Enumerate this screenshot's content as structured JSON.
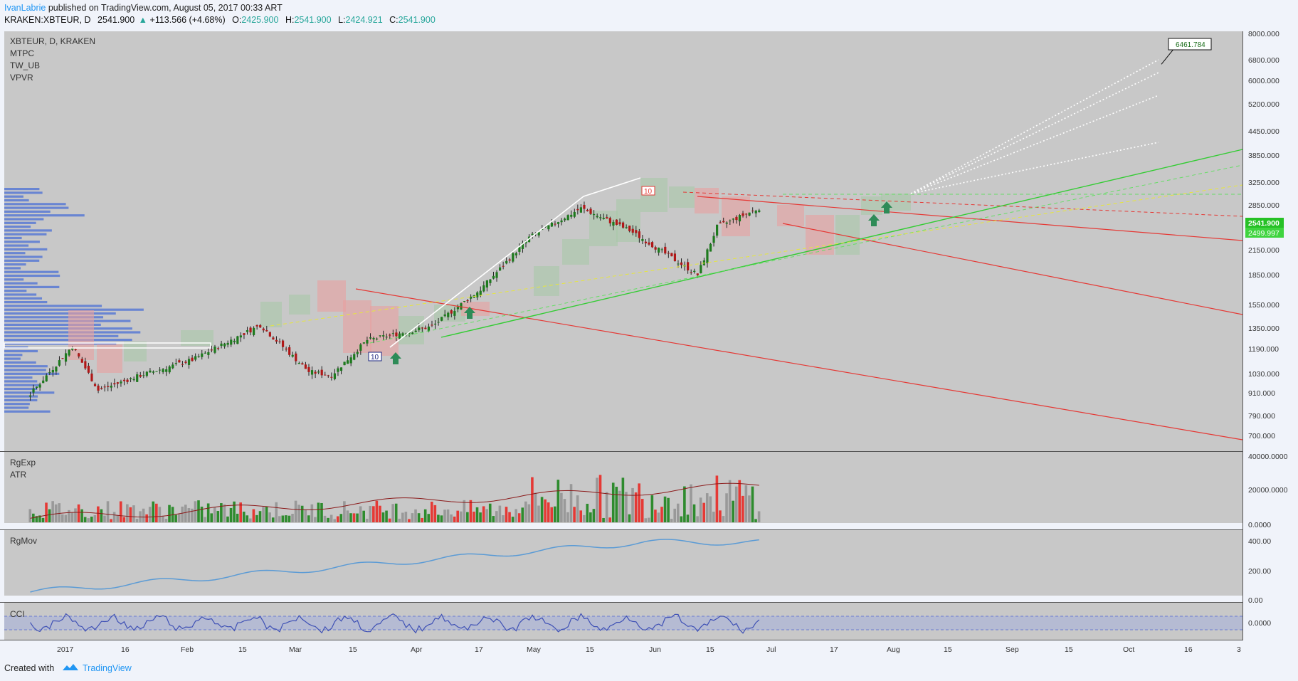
{
  "header": {
    "author": "IvanLabrie",
    "published_text": "published on TradingView.com, August 05, 2017 00:33 ART",
    "symbol_line": "KRAKEN:XBTEUR, D",
    "last": "2541.900",
    "change_arrow": "▲",
    "change": "+113.566 (+4.68%)",
    "open_label": "O:",
    "open": "2425.900",
    "high_label": "H:",
    "high": "2541.900",
    "low_label": "L:",
    "low": "2424.921",
    "close_label": "C:",
    "close": "2541.900"
  },
  "main_pane": {
    "legend": [
      "XBTEUR, D, KRAKEN",
      "MTPC",
      "TW_UB",
      "VPVR"
    ],
    "price_axis": [
      "8000.000",
      "6800.000",
      "6000.000",
      "5200.000",
      "4450.000",
      "3850.000",
      "3250.000",
      "2850.000",
      "2150.000",
      "1850.000",
      "1550.000",
      "1350.000",
      "1190.000",
      "1030.000",
      "910.000",
      "790.000",
      "700.000"
    ],
    "price_tag": "2541.900",
    "price_tag2": "2499.997",
    "target_label": "6461.784",
    "marker_labels": [
      "10",
      "10"
    ]
  },
  "pane2": {
    "legend": [
      "RgExp",
      "ATR"
    ],
    "axis": [
      "40000.0000",
      "20000.0000",
      "0.0000"
    ]
  },
  "pane3": {
    "legend": [
      "RgMov"
    ],
    "axis": [
      "400.00",
      "200.00",
      "0.00"
    ]
  },
  "pane4": {
    "legend": [
      "CCI"
    ],
    "axis": [
      "0.0000"
    ]
  },
  "time_axis": [
    "2017",
    "16",
    "Feb",
    "15",
    "Mar",
    "15",
    "Apr",
    "17",
    "May",
    "15",
    "Jun",
    "15",
    "Jul",
    "17",
    "Aug",
    "15",
    "Sep",
    "15",
    "Oct",
    "16",
    "3"
  ],
  "footer": {
    "created_with": "Created with",
    "brand": "TradingView"
  },
  "colors": {
    "up": "#26a69a",
    "bar_up": "#2e8b2e",
    "bar_down": "#e53935",
    "bar_neutral": "#999999",
    "background": "#c8c8c8",
    "line_blue": "#5b9bd5",
    "vpvr": "#4a6fd6"
  },
  "chart_data": {
    "type": "candlestick",
    "symbol": "KRAKEN:XBTEUR",
    "interval": "D",
    "ylim": [
      650,
      8500
    ],
    "y_scale": "log",
    "approx_close_path": [
      {
        "date": "2016-12-22",
        "close": 760
      },
      {
        "date": "2017-01-04",
        "close": 1040
      },
      {
        "date": "2017-01-12",
        "close": 780
      },
      {
        "date": "2017-01-25",
        "close": 860
      },
      {
        "date": "2017-02-10",
        "close": 950
      },
      {
        "date": "2017-03-03",
        "close": 1190
      },
      {
        "date": "2017-03-18",
        "close": 880
      },
      {
        "date": "2017-03-25",
        "close": 860
      },
      {
        "date": "2017-04-05",
        "close": 1080
      },
      {
        "date": "2017-04-25",
        "close": 1180
      },
      {
        "date": "2017-05-10",
        "close": 1500
      },
      {
        "date": "2017-05-25",
        "close": 2100
      },
      {
        "date": "2017-06-10",
        "close": 2540
      },
      {
        "date": "2017-06-25",
        "close": 2200
      },
      {
        "date": "2017-07-16",
        "close": 1650
      },
      {
        "date": "2017-07-22",
        "close": 2250
      },
      {
        "date": "2017-08-04",
        "close": 2541.9
      }
    ],
    "target": {
      "value": 6461.784
    }
  }
}
